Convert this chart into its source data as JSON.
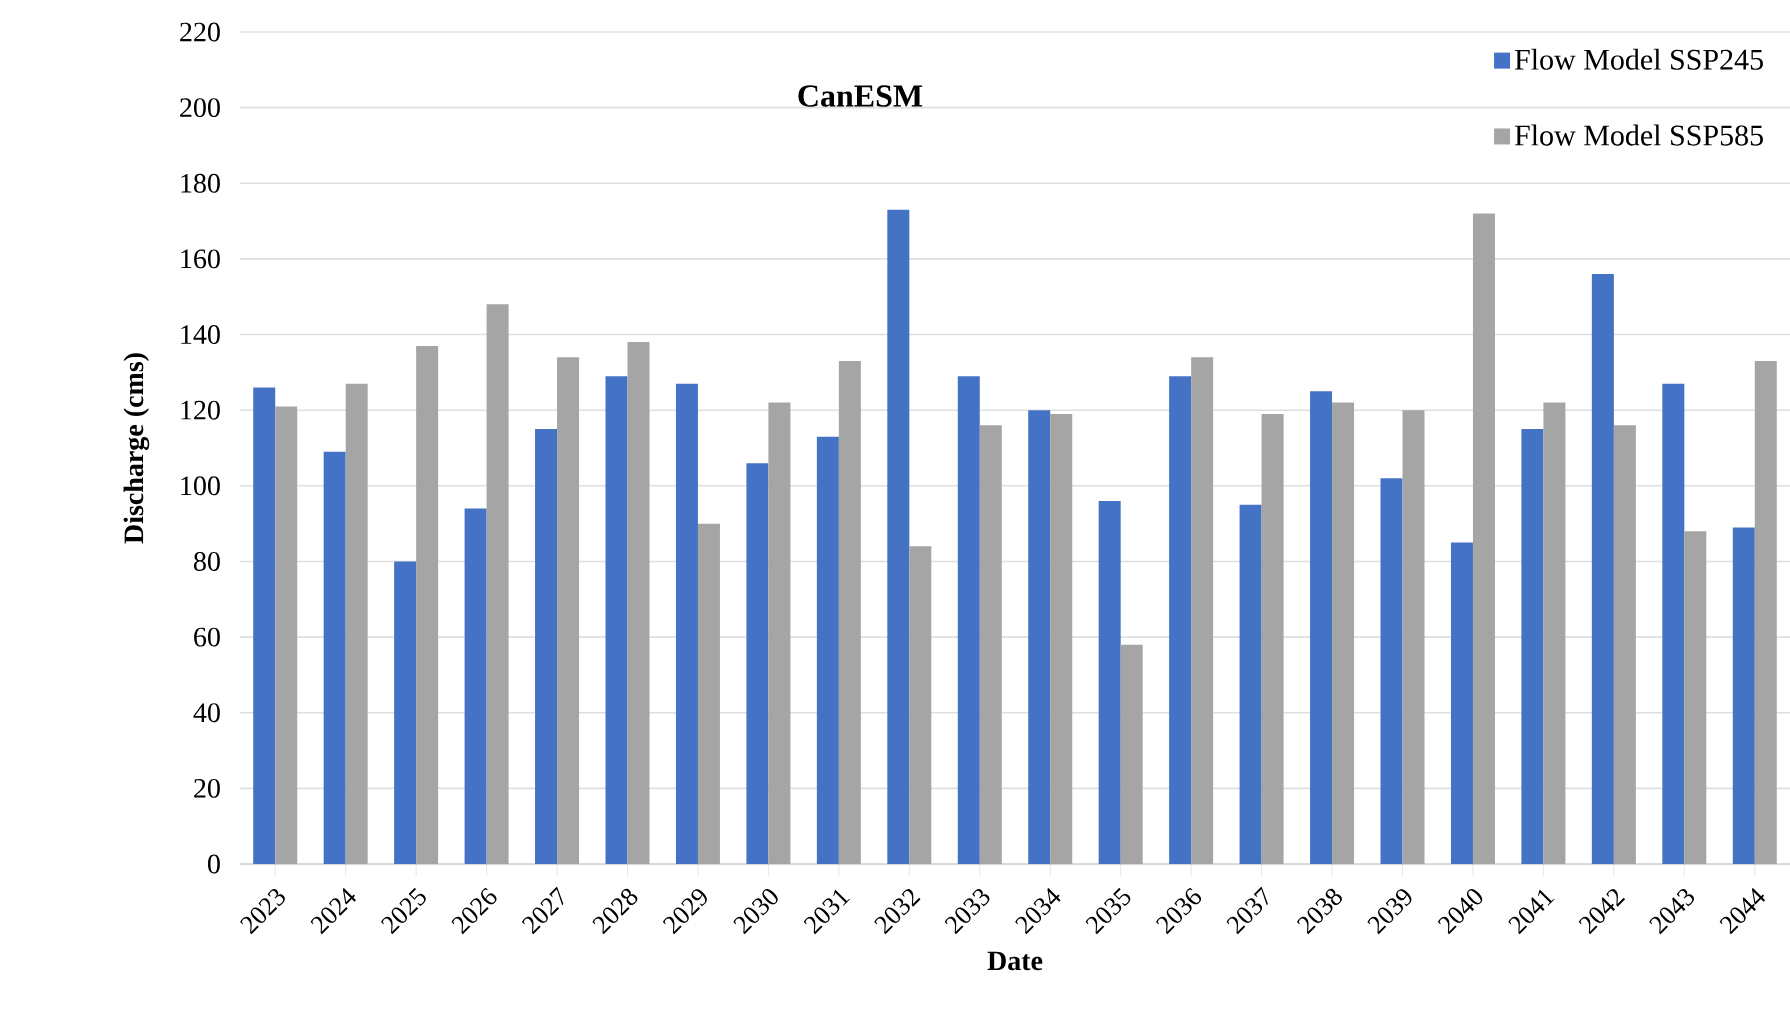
{
  "chart_data": {
    "type": "bar",
    "title": "CanESM",
    "xlabel": "Date",
    "ylabel": "Discharge (cms)",
    "categories": [
      "2023",
      "2024",
      "2025",
      "2026",
      "2027",
      "2028",
      "2029",
      "2030",
      "2031",
      "2032",
      "2033",
      "2034",
      "2035",
      "2036",
      "2037",
      "2038",
      "2039",
      "2040",
      "2041",
      "2042",
      "2043",
      "2044"
    ],
    "series": [
      {
        "name": "Flow Model SSP245",
        "color": "#4472c4",
        "values": [
          126,
          109,
          80,
          94,
          115,
          129,
          127,
          106,
          113,
          173,
          129,
          120,
          96,
          129,
          95,
          125,
          102,
          85,
          115,
          156,
          127,
          89
        ]
      },
      {
        "name": "Flow Model SSP585",
        "color": "#a5a5a5",
        "values": [
          121,
          127,
          137,
          148,
          134,
          138,
          90,
          122,
          133,
          84,
          116,
          119,
          58,
          134,
          119,
          122,
          120,
          172,
          122,
          116,
          88,
          133
        ]
      }
    ],
    "ylim": [
      0,
      220
    ],
    "yticks": [
      0,
      20,
      40,
      60,
      80,
      100,
      120,
      140,
      160,
      180,
      200,
      220
    ],
    "grid": "y",
    "legend": "top right"
  }
}
